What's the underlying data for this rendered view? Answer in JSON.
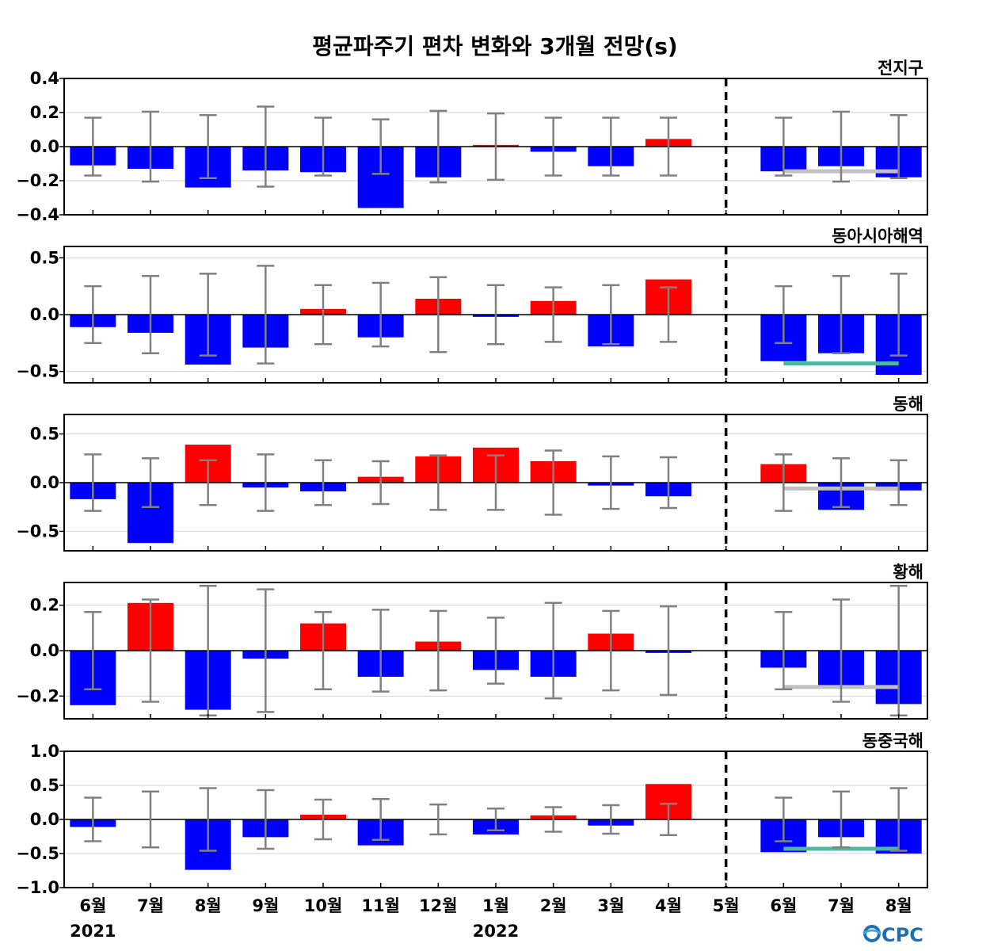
{
  "chart_data": {
    "type": "bar",
    "title": "평균파주기 편차 변화와 3개월 전망(s)",
    "categories": [
      "6월",
      "7월",
      "8월",
      "9월",
      "10월",
      "11월",
      "12월",
      "1월",
      "2월",
      "3월",
      "4월",
      "5월",
      "6월",
      "7월",
      "8월"
    ],
    "year_labels": [
      {
        "index": 0,
        "label": "2021"
      },
      {
        "index": 7,
        "label": "2022"
      }
    ],
    "forecast_divider_after_index": 11,
    "colors": {
      "positive": "#ff0000",
      "negative": "#0000ff",
      "errorbar": "#808080",
      "gridline": "#d3d3d3"
    },
    "logo_text": "CPC",
    "panels": [
      {
        "name": "전지구",
        "ylim": [
          -0.4,
          0.4
        ],
        "yticks": [
          -0.4,
          -0.2,
          0.0,
          0.2,
          0.4
        ],
        "tick_labels": [
          "−0.4",
          "−0.2",
          "0.0",
          "0.2",
          "0.4"
        ],
        "values": [
          -0.11,
          -0.13,
          -0.24,
          -0.14,
          -0.15,
          -0.36,
          -0.18,
          0.01,
          -0.03,
          -0.115,
          0.045,
          0.0,
          -0.145,
          -0.115,
          -0.18
        ],
        "error_bars": [
          0.17,
          0.205,
          0.185,
          0.235,
          0.17,
          0.16,
          0.21,
          0.195,
          0.17,
          0.17,
          0.17,
          null,
          0.17,
          0.205,
          0.185
        ],
        "forecast_line": {
          "value": -0.145,
          "color": "#c0c0c0"
        }
      },
      {
        "name": "동아시아해역",
        "ylim": [
          -0.6,
          0.6
        ],
        "yticks": [
          -0.5,
          0.0,
          0.5
        ],
        "tick_labels": [
          "−0.5",
          "0.0",
          "0.5"
        ],
        "values": [
          -0.11,
          -0.16,
          -0.44,
          -0.29,
          0.05,
          -0.2,
          0.14,
          -0.02,
          0.12,
          -0.28,
          0.31,
          0.0,
          -0.41,
          -0.34,
          -0.53
        ],
        "error_bars": [
          0.25,
          0.34,
          0.36,
          0.43,
          0.26,
          0.28,
          0.33,
          0.26,
          0.24,
          0.26,
          0.24,
          null,
          0.25,
          0.34,
          0.36
        ],
        "forecast_line": {
          "value": -0.43,
          "color": "#4db8a0"
        }
      },
      {
        "name": "동해",
        "ylim": [
          -0.7,
          0.7
        ],
        "yticks": [
          -0.5,
          0.0,
          0.5
        ],
        "tick_labels": [
          "−0.5",
          "0.0",
          "0.5"
        ],
        "values": [
          -0.17,
          -0.62,
          0.39,
          -0.05,
          -0.09,
          0.06,
          0.27,
          0.36,
          0.22,
          -0.03,
          -0.14,
          0.0,
          0.19,
          -0.28,
          -0.08
        ],
        "error_bars": [
          0.29,
          0.25,
          0.23,
          0.29,
          0.23,
          0.22,
          0.28,
          0.28,
          0.33,
          0.27,
          0.26,
          null,
          0.29,
          0.25,
          0.23
        ],
        "forecast_line": {
          "value": -0.06,
          "color": "#c0c0c0"
        }
      },
      {
        "name": "황해",
        "ylim": [
          -0.3,
          0.3
        ],
        "yticks": [
          -0.2,
          0.0,
          0.2
        ],
        "tick_labels": [
          "−0.2",
          "0.0",
          "0.2"
        ],
        "values": [
          -0.24,
          0.21,
          -0.26,
          -0.035,
          0.12,
          -0.115,
          0.04,
          -0.085,
          -0.115,
          0.075,
          -0.01,
          0.0,
          -0.075,
          -0.155,
          -0.235
        ],
        "error_bars": [
          0.17,
          0.225,
          0.285,
          0.27,
          0.17,
          0.18,
          0.175,
          0.145,
          0.21,
          0.175,
          0.195,
          null,
          0.17,
          0.225,
          0.285
        ],
        "forecast_line": {
          "value": -0.16,
          "color": "#c0c0c0"
        }
      },
      {
        "name": "동중국해",
        "ylim": [
          -1.0,
          1.0
        ],
        "yticks": [
          -1.0,
          -0.5,
          0.0,
          0.5,
          1.0
        ],
        "tick_labels": [
          "−1.0",
          "−0.5",
          "0.0",
          "0.5",
          "1.0"
        ],
        "values": [
          -0.11,
          0.0,
          -0.74,
          -0.26,
          0.07,
          -0.38,
          0.0,
          -0.22,
          0.06,
          -0.09,
          0.52,
          0.0,
          -0.48,
          -0.26,
          -0.5
        ],
        "error_bars": [
          0.32,
          0.41,
          0.46,
          0.43,
          0.29,
          0.3,
          0.22,
          0.16,
          0.18,
          0.21,
          0.23,
          null,
          0.32,
          0.41,
          0.46
        ],
        "forecast_line": {
          "value": -0.43,
          "color": "#4db8a0"
        }
      }
    ]
  }
}
